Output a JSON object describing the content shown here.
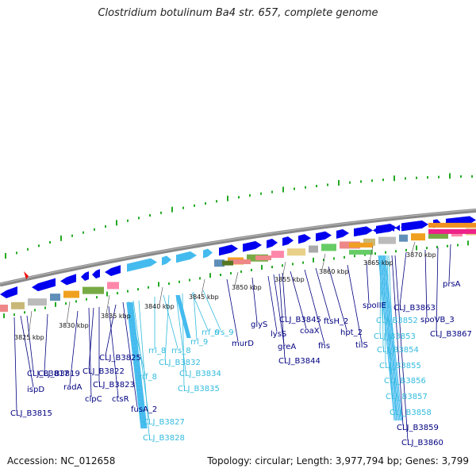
{
  "title": "Clostridium botulinum Ba4 str. 657, complete genome",
  "footer": {
    "accession": "Accession: NC_012658",
    "summary": "Topology: circular; Length: 3,977,794 bp; Genes: 3,799"
  },
  "colors": {
    "gene_blue": "#0000ee",
    "rna_cyan": "#44bbee",
    "tick_green": "#22aa22",
    "backbone_gray": "#888888",
    "label_navy": "#000080",
    "label_cyan": "#33bbdd",
    "marker_red": "#ee0000"
  },
  "scale_markers": [
    "3825 kbp",
    "3830 kbp",
    "3835 kbp",
    "3840 kbp",
    "3845 kbp",
    "3850 kbp",
    "3855 kbp",
    "3860 kbp",
    "3865 kbp",
    "3870 kbp"
  ],
  "gene_labels": [
    {
      "text": "CLJ_B3815",
      "kind": "gene"
    },
    {
      "text": "ispD",
      "kind": "gene"
    },
    {
      "text": "CLJ_B3817",
      "kind": "gene"
    },
    {
      "text": "CLJ_B3819",
      "kind": "gene"
    },
    {
      "text": "radA",
      "kind": "gene"
    },
    {
      "text": "clpC",
      "kind": "gene"
    },
    {
      "text": "CLJ_B3822",
      "kind": "gene"
    },
    {
      "text": "CLJ_B3823",
      "kind": "gene"
    },
    {
      "text": "ctsR",
      "kind": "gene"
    },
    {
      "text": "CLJ_B3825",
      "kind": "gene"
    },
    {
      "text": "fusA_2",
      "kind": "gene"
    },
    {
      "text": "rrf_8",
      "kind": "rna"
    },
    {
      "text": "CLJ_B3827",
      "kind": "rna"
    },
    {
      "text": "CLJ_B3828",
      "kind": "rna"
    },
    {
      "text": "rrl_8",
      "kind": "rna"
    },
    {
      "text": "rrs_8",
      "kind": "rna"
    },
    {
      "text": "CLJ_B3832",
      "kind": "rna"
    },
    {
      "text": "CLJ_B3834",
      "kind": "rna"
    },
    {
      "text": "CLJ_B3835",
      "kind": "rna"
    },
    {
      "text": "rrf_9",
      "kind": "rna"
    },
    {
      "text": "rrl_9",
      "kind": "rna"
    },
    {
      "text": "rrs_9",
      "kind": "rna"
    },
    {
      "text": "murD",
      "kind": "gene"
    },
    {
      "text": "glyS",
      "kind": "gene"
    },
    {
      "text": "lysS",
      "kind": "gene"
    },
    {
      "text": "greA",
      "kind": "gene"
    },
    {
      "text": "CLJ_B3844",
      "kind": "gene"
    },
    {
      "text": "CLJ_B3845",
      "kind": "gene"
    },
    {
      "text": "coaX",
      "kind": "gene"
    },
    {
      "text": "fhs",
      "kind": "gene"
    },
    {
      "text": "ftsH_2",
      "kind": "gene"
    },
    {
      "text": "hpt_2",
      "kind": "gene"
    },
    {
      "text": "tilS",
      "kind": "gene"
    },
    {
      "text": "spoIIE",
      "kind": "gene"
    },
    {
      "text": "CLJ_B3852",
      "kind": "rna"
    },
    {
      "text": "CLJ_B3853",
      "kind": "rna"
    },
    {
      "text": "CLJ_B3854",
      "kind": "rna"
    },
    {
      "text": "CLJ_B3855",
      "kind": "rna"
    },
    {
      "text": "CLJ_B3856",
      "kind": "rna"
    },
    {
      "text": "CLJ_B3857",
      "kind": "rna"
    },
    {
      "text": "CLJ_B3858",
      "kind": "rna"
    },
    {
      "text": "CLJ_B3859",
      "kind": "gene"
    },
    {
      "text": "CLJ_B3860",
      "kind": "gene"
    },
    {
      "text": "CLJ_B3863",
      "kind": "gene"
    },
    {
      "text": "spoVB_3",
      "kind": "gene"
    },
    {
      "text": "CLJ_B3867",
      "kind": "gene"
    },
    {
      "text": "prsA",
      "kind": "gene"
    }
  ]
}
